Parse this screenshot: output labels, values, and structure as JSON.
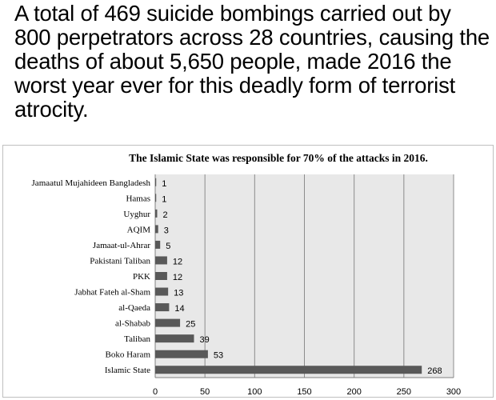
{
  "headline": "A total of 469 suicide bombings carried out by 800 perpetrators across 28 countries, causing the deaths of about 5,650 people, made 2016 the worst year ever for this deadly form of terrorist atrocity.",
  "chart_data": {
    "type": "bar",
    "orientation": "horizontal",
    "title": "The Islamic State was responsible for 70% of the attacks in 2016.",
    "categories": [
      "Jamaatul Mujahideen Bangladesh",
      "Hamas",
      "Uyghur",
      "AQIM",
      "Jamaat-ul-Ahrar",
      "Pakistani Taliban",
      "PKK",
      "Jabhat Fateh al-Sham",
      "al-Qaeda",
      "al-Shabab",
      "Taliban",
      "Boko Haram",
      "Islamic State"
    ],
    "values": [
      1,
      1,
      2,
      3,
      5,
      12,
      12,
      13,
      14,
      25,
      39,
      53,
      268
    ],
    "data_labels": [
      "1",
      "1",
      "2",
      "3",
      "5",
      "12",
      "12",
      "13",
      "14",
      "25",
      "39",
      "53",
      "268"
    ],
    "xlim": [
      0,
      300
    ],
    "xticks": [
      "0",
      "50",
      "100",
      "150",
      "200",
      "250",
      "300"
    ],
    "grid": true,
    "colors": {
      "bar": "#595959",
      "plot_bg": "#e8e8e8",
      "grid": "#8c8c8c"
    }
  }
}
